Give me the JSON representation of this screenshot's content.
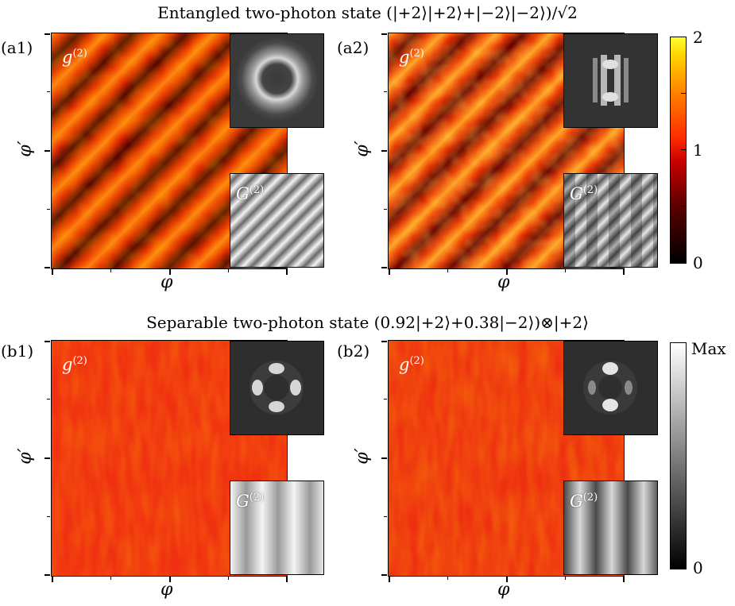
{
  "titles": {
    "entangled": "Entangled two-photon state (|+2⟩|+2⟩+|−2⟩|−2⟩)/√2",
    "separable": "Separable two-photon state (0.92|+2⟩+0.38|−2⟩)⊗|+2⟩"
  },
  "panels": {
    "a1": "(a1)",
    "a2": "(a2)",
    "b1": "(b1)",
    "b2": "(b2)"
  },
  "labels": {
    "g2_base": "g",
    "g2_sup": "(2)",
    "G2_base": "G",
    "G2_sup": "(2)",
    "xaxis": "φ",
    "yaxis": "φ′"
  },
  "colorbar_top": {
    "max": "2",
    "mid": "1",
    "min": "0",
    "colors": [
      "#000000",
      "#5a0000",
      "#c80000",
      "#ff2a00",
      "#ff8000",
      "#ffd400",
      "#ffff30"
    ]
  },
  "colorbar_bottom": {
    "max": "Max",
    "min": "0",
    "colors": [
      "#000000",
      "#ffffff"
    ]
  }
}
